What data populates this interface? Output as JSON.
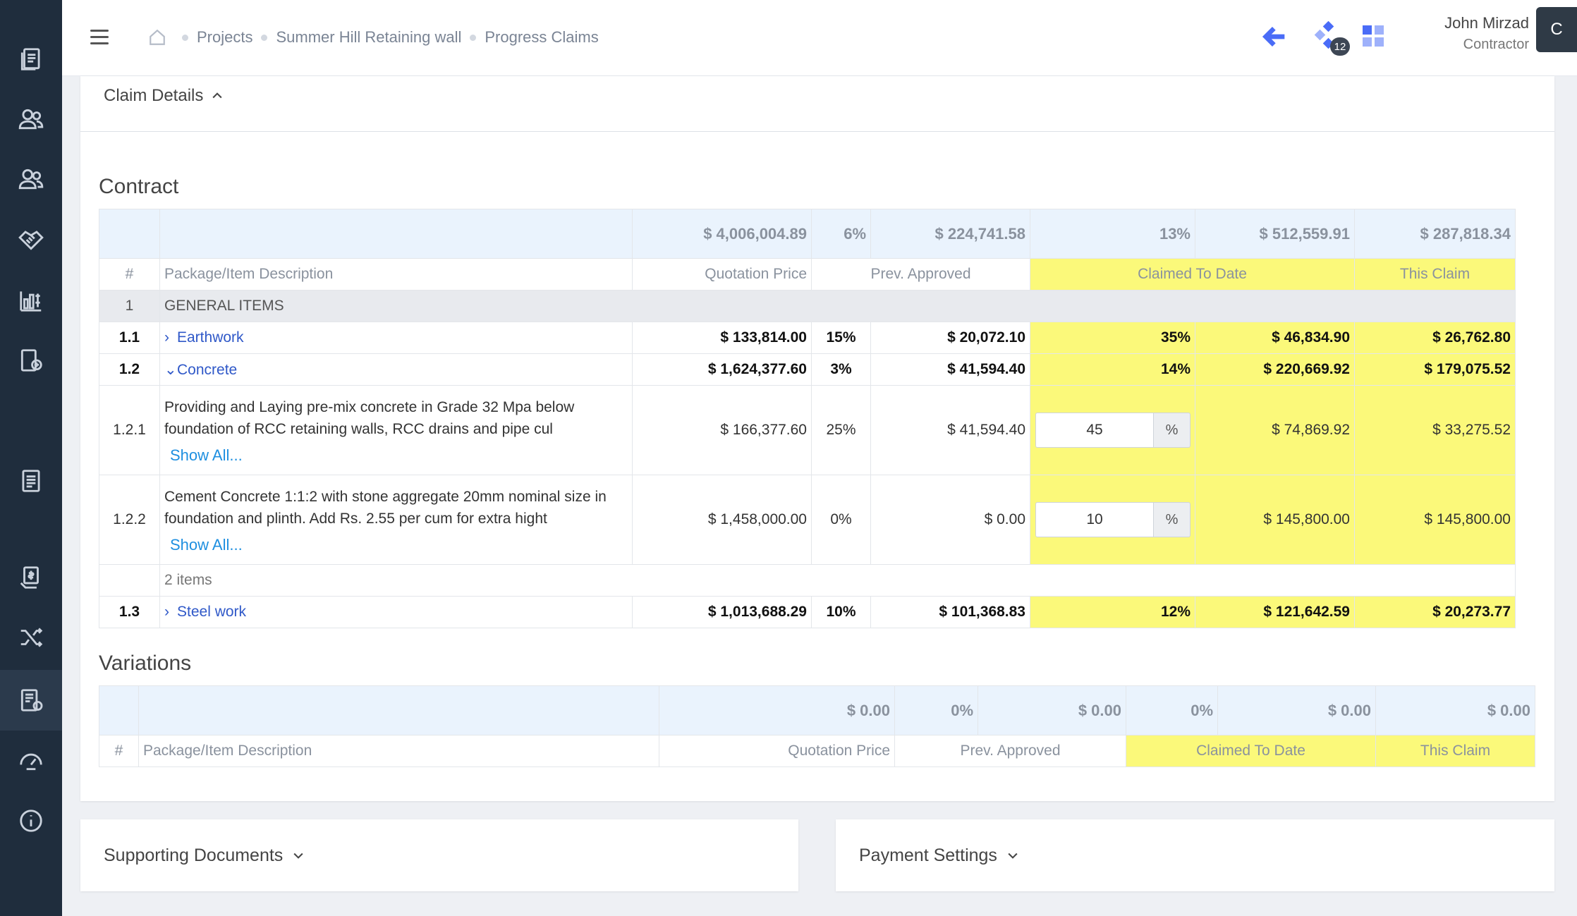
{
  "header": {
    "breadcrumb": [
      "Projects",
      "Summer Hill Retaining wall",
      "Progress Claims"
    ],
    "badge_count": "12",
    "user_name": "John Mirzad",
    "user_role": "Contractor",
    "avatar_initial": "C"
  },
  "sidebar": {
    "icons": [
      "documents-icon",
      "users-icon",
      "contacts-icon",
      "handshake-icon",
      "analytics-icon",
      "reports-icon",
      "invoice-icon",
      "payment-icon",
      "shuffle-icon",
      "claims-icon",
      "dashboard-icon",
      "info-icon"
    ]
  },
  "claim_details_label": "Claim Details",
  "contract": {
    "title": "Contract",
    "totals": {
      "quotation": "$ 4,006,004.89",
      "prev_pct": "6%",
      "prev_approved": "$ 224,741.58",
      "claimed_pct": "13%",
      "claimed_to_date": "$ 512,559.91",
      "this_claim": "$ 287,818.34"
    },
    "headers": {
      "num": "#",
      "desc": "Package/Item Description",
      "quotation": "Quotation Price",
      "prev": "Prev. Approved",
      "claimed": "Claimed To Date",
      "this": "This Claim"
    },
    "group": {
      "num": "1",
      "label": "GENERAL ITEMS"
    },
    "rows": {
      "earthwork": {
        "num": "1.1",
        "label": "Earthwork",
        "quotation": "$ 133,814.00",
        "prev_pct": "15%",
        "prev": "$ 20,072.10",
        "claimed_pct": "35%",
        "claimed": "$ 46,834.90",
        "this": "$ 26,762.80"
      },
      "concrete": {
        "num": "1.2",
        "label": "Concrete",
        "quotation": "$ 1,624,377.60",
        "prev_pct": "3%",
        "prev": "$ 41,594.40",
        "claimed_pct": "14%",
        "claimed": "$ 220,669.92",
        "this": "$ 179,075.52"
      },
      "sub1": {
        "num": "1.2.1",
        "desc": "Providing and Laying pre-mix concrete in Grade 32 Mpa below foundation of RCC retaining walls, RCC drains and pipe cul",
        "show_all": "Show All...",
        "quotation": "$ 166,377.60",
        "prev_pct": "25%",
        "prev": "$ 41,594.40",
        "input": "45",
        "unit": "%",
        "claimed": "$ 74,869.92",
        "this": "$ 33,275.52"
      },
      "sub2": {
        "num": "1.2.2",
        "desc": "Cement Concrete 1:1:2 with stone aggregate 20mm nominal size in foundation and plinth. Add Rs. 2.55 per cum for extra hight",
        "show_all": "Show All...",
        "quotation": "$ 1,458,000.00",
        "prev_pct": "0%",
        "prev": "$ 0.00",
        "input": "10",
        "unit": "%",
        "claimed": "$ 145,800.00",
        "this": "$ 145,800.00"
      },
      "count": "2 items",
      "steel": {
        "num": "1.3",
        "label": "Steel work",
        "quotation": "$ 1,013,688.29",
        "prev_pct": "10%",
        "prev": "$ 101,368.83",
        "claimed_pct": "12%",
        "claimed": "$ 121,642.59",
        "this": "$ 20,273.77"
      }
    }
  },
  "variations": {
    "title": "Variations",
    "totals": {
      "quotation": "$ 0.00",
      "prev_pct": "0%",
      "prev_approved": "$ 0.00",
      "claimed_pct": "0%",
      "claimed_to_date": "$ 0.00",
      "this_claim": "$ 0.00"
    },
    "headers": {
      "num": "#",
      "desc": "Package/Item Description",
      "quotation": "Quotation Price",
      "prev": "Prev. Approved",
      "claimed": "Claimed To Date",
      "this": "This Claim"
    }
  },
  "supporting_documents_label": "Supporting Documents",
  "payment_settings_label": "Payment Settings",
  "colors": {
    "sidebar": "#1f2d3d",
    "highlight": "#fbf97a",
    "link": "#2f58c8",
    "accent": "#4a6cf7"
  }
}
